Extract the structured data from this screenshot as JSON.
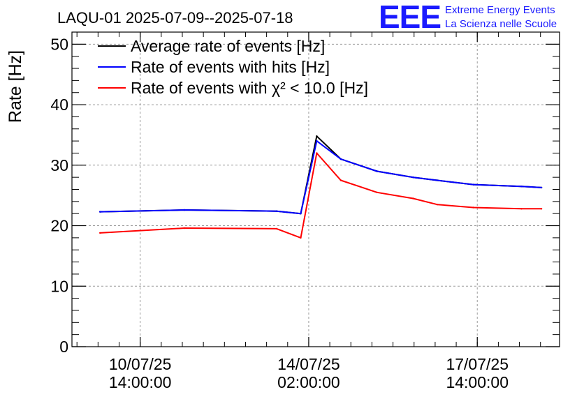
{
  "header": {
    "title": "LAQU-01 2025-07-09--2025-07-18",
    "logo_text": "EEE",
    "org_line1": "Extreme Energy Events",
    "org_line2": "La Scienza nelle Scuole"
  },
  "chart_data": {
    "type": "line",
    "title": "LAQU-01 2025-07-09--2025-07-18",
    "xlabel": "",
    "ylabel": "Rate [Hz]",
    "ylim": [
      0,
      52
    ],
    "y_ticks": [
      0,
      10,
      20,
      30,
      40,
      50
    ],
    "x_time_range": [
      "2025-07-09 04:00:00",
      "2025-07-19 07:00:00"
    ],
    "x_ticks": [
      {
        "time": "2025-07-10 14:00:00",
        "label_line1": "10/07/25",
        "label_line2": "14:00:00"
      },
      {
        "time": "2025-07-14 02:00:00",
        "label_line1": "14/07/25",
        "label_line2": "02:00:00"
      },
      {
        "time": "2025-07-17 14:00:00",
        "label_line1": "17/07/25",
        "label_line2": "14:00:00"
      }
    ],
    "grid": true,
    "legend_position": "top-left",
    "series": [
      {
        "name": "Average rate of events [Hz]",
        "color": "#000000",
        "points": [
          {
            "t": "2025-07-09 18:00:00",
            "y": 22.3
          },
          {
            "t": "2025-07-11 12:00:00",
            "y": 22.6
          },
          {
            "t": "2025-07-13 10:00:00",
            "y": 22.4
          },
          {
            "t": "2025-07-13 22:00:00",
            "y": 22.0
          },
          {
            "t": "2025-07-14 06:00:00",
            "y": 34.8
          },
          {
            "t": "2025-07-14 18:00:00",
            "y": 31.0
          },
          {
            "t": "2025-07-15 12:00:00",
            "y": 29.0
          },
          {
            "t": "2025-07-16 06:00:00",
            "y": 28.0
          },
          {
            "t": "2025-07-16 18:00:00",
            "y": 27.5
          },
          {
            "t": "2025-07-17 12:00:00",
            "y": 26.8
          },
          {
            "t": "2025-07-18 12:00:00",
            "y": 26.5
          },
          {
            "t": "2025-07-18 22:00:00",
            "y": 26.3
          }
        ]
      },
      {
        "name": "Rate of events with hits [Hz]",
        "color": "#0000ff",
        "points": [
          {
            "t": "2025-07-09 18:00:00",
            "y": 22.3
          },
          {
            "t": "2025-07-11 12:00:00",
            "y": 22.6
          },
          {
            "t": "2025-07-13 10:00:00",
            "y": 22.4
          },
          {
            "t": "2025-07-13 22:00:00",
            "y": 22.0
          },
          {
            "t": "2025-07-14 06:00:00",
            "y": 34.0
          },
          {
            "t": "2025-07-14 18:00:00",
            "y": 31.0
          },
          {
            "t": "2025-07-15 12:00:00",
            "y": 29.0
          },
          {
            "t": "2025-07-16 06:00:00",
            "y": 28.0
          },
          {
            "t": "2025-07-16 18:00:00",
            "y": 27.5
          },
          {
            "t": "2025-07-17 12:00:00",
            "y": 26.8
          },
          {
            "t": "2025-07-18 12:00:00",
            "y": 26.5
          },
          {
            "t": "2025-07-18 22:00:00",
            "y": 26.3
          }
        ]
      },
      {
        "name": "Rate of events with χ² < 10.0 [Hz]",
        "color": "#ff0000",
        "points": [
          {
            "t": "2025-07-09 18:00:00",
            "y": 18.8
          },
          {
            "t": "2025-07-11 12:00:00",
            "y": 19.6
          },
          {
            "t": "2025-07-13 10:00:00",
            "y": 19.5
          },
          {
            "t": "2025-07-13 22:00:00",
            "y": 18.0
          },
          {
            "t": "2025-07-14 06:00:00",
            "y": 32.0
          },
          {
            "t": "2025-07-14 18:00:00",
            "y": 27.5
          },
          {
            "t": "2025-07-15 12:00:00",
            "y": 25.5
          },
          {
            "t": "2025-07-16 06:00:00",
            "y": 24.5
          },
          {
            "t": "2025-07-16 18:00:00",
            "y": 23.5
          },
          {
            "t": "2025-07-17 12:00:00",
            "y": 23.0
          },
          {
            "t": "2025-07-18 12:00:00",
            "y": 22.8
          },
          {
            "t": "2025-07-18 22:00:00",
            "y": 22.8
          }
        ]
      }
    ],
    "legend": [
      {
        "label": "Average rate of events [Hz]",
        "color": "#000000"
      },
      {
        "label": "Rate of events with hits [Hz]",
        "color": "#0000ff"
      },
      {
        "label": "Rate of events with χ² < 10.0 [Hz]",
        "color": "#ff0000"
      }
    ]
  }
}
